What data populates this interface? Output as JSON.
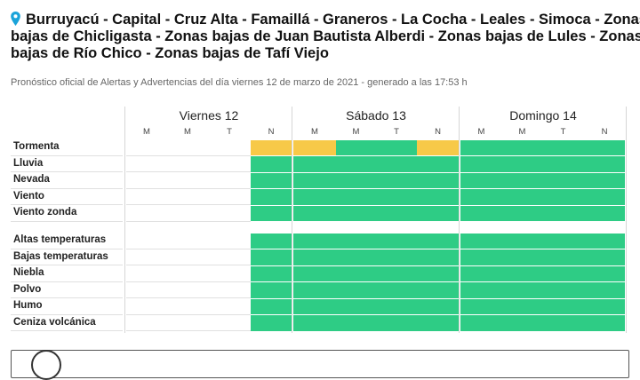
{
  "header": {
    "title_lines": [
      "Burruyacú - Capital - Cruz Alta - Famaillá - Graneros - La Cocha - Leales - Simoca - Zonas",
      "bajas de Chicligasta - Zonas bajas de Juan Bautista Alberdi - Zonas bajas de Lules - Zonas",
      "bajas de Río Chico - Zonas bajas de Tafí Viejo"
    ],
    "subtitle": "Pronóstico oficial de Alertas y Advertencias del día viernes 12 de marzo de 2021 - generado a las 17:53 h"
  },
  "colors": {
    "green": "#2ecc85",
    "yellow": "#f7c948",
    "empty": "#ffffff"
  },
  "days": [
    {
      "label": "Viernes 12",
      "slots": [
        "M",
        "M",
        "T",
        "N"
      ]
    },
    {
      "label": "Sábado 13",
      "slots": [
        "M",
        "M",
        "T",
        "N"
      ]
    },
    {
      "label": "Domingo 14",
      "slots": [
        "M",
        "M",
        "T",
        "N"
      ]
    }
  ],
  "groups": [
    {
      "rows": [
        {
          "label": "Tormenta",
          "cells": [
            "empty",
            "empty",
            "empty",
            "yellow",
            "yellow",
            "green",
            "green",
            "yellow",
            "green",
            "green",
            "green",
            "green"
          ]
        },
        {
          "label": "Lluvia",
          "cells": [
            "empty",
            "empty",
            "empty",
            "green",
            "green",
            "green",
            "green",
            "green",
            "green",
            "green",
            "green",
            "green"
          ]
        },
        {
          "label": "Nevada",
          "cells": [
            "empty",
            "empty",
            "empty",
            "green",
            "green",
            "green",
            "green",
            "green",
            "green",
            "green",
            "green",
            "green"
          ]
        },
        {
          "label": "Viento",
          "cells": [
            "empty",
            "empty",
            "empty",
            "green",
            "green",
            "green",
            "green",
            "green",
            "green",
            "green",
            "green",
            "green"
          ]
        },
        {
          "label": "Viento zonda",
          "cells": [
            "empty",
            "empty",
            "empty",
            "green",
            "green",
            "green",
            "green",
            "green",
            "green",
            "green",
            "green",
            "green"
          ]
        }
      ]
    },
    {
      "rows": [
        {
          "label": "Altas temperaturas",
          "cells": [
            "empty",
            "empty",
            "empty",
            "green",
            "green",
            "green",
            "green",
            "green",
            "green",
            "green",
            "green",
            "green"
          ]
        },
        {
          "label": "Bajas temperaturas",
          "cells": [
            "empty",
            "empty",
            "empty",
            "green",
            "green",
            "green",
            "green",
            "green",
            "green",
            "green",
            "green",
            "green"
          ]
        },
        {
          "label": "Niebla",
          "cells": [
            "empty",
            "empty",
            "empty",
            "green",
            "green",
            "green",
            "green",
            "green",
            "green",
            "green",
            "green",
            "green"
          ]
        },
        {
          "label": "Polvo",
          "cells": [
            "empty",
            "empty",
            "empty",
            "green",
            "green",
            "green",
            "green",
            "green",
            "green",
            "green",
            "green",
            "green"
          ]
        },
        {
          "label": "Humo",
          "cells": [
            "empty",
            "empty",
            "empty",
            "green",
            "green",
            "green",
            "green",
            "green",
            "green",
            "green",
            "green",
            "green"
          ]
        },
        {
          "label": "Ceniza volcánica",
          "cells": [
            "empty",
            "empty",
            "empty",
            "green",
            "green",
            "green",
            "green",
            "green",
            "green",
            "green",
            "green",
            "green"
          ]
        }
      ]
    }
  ]
}
